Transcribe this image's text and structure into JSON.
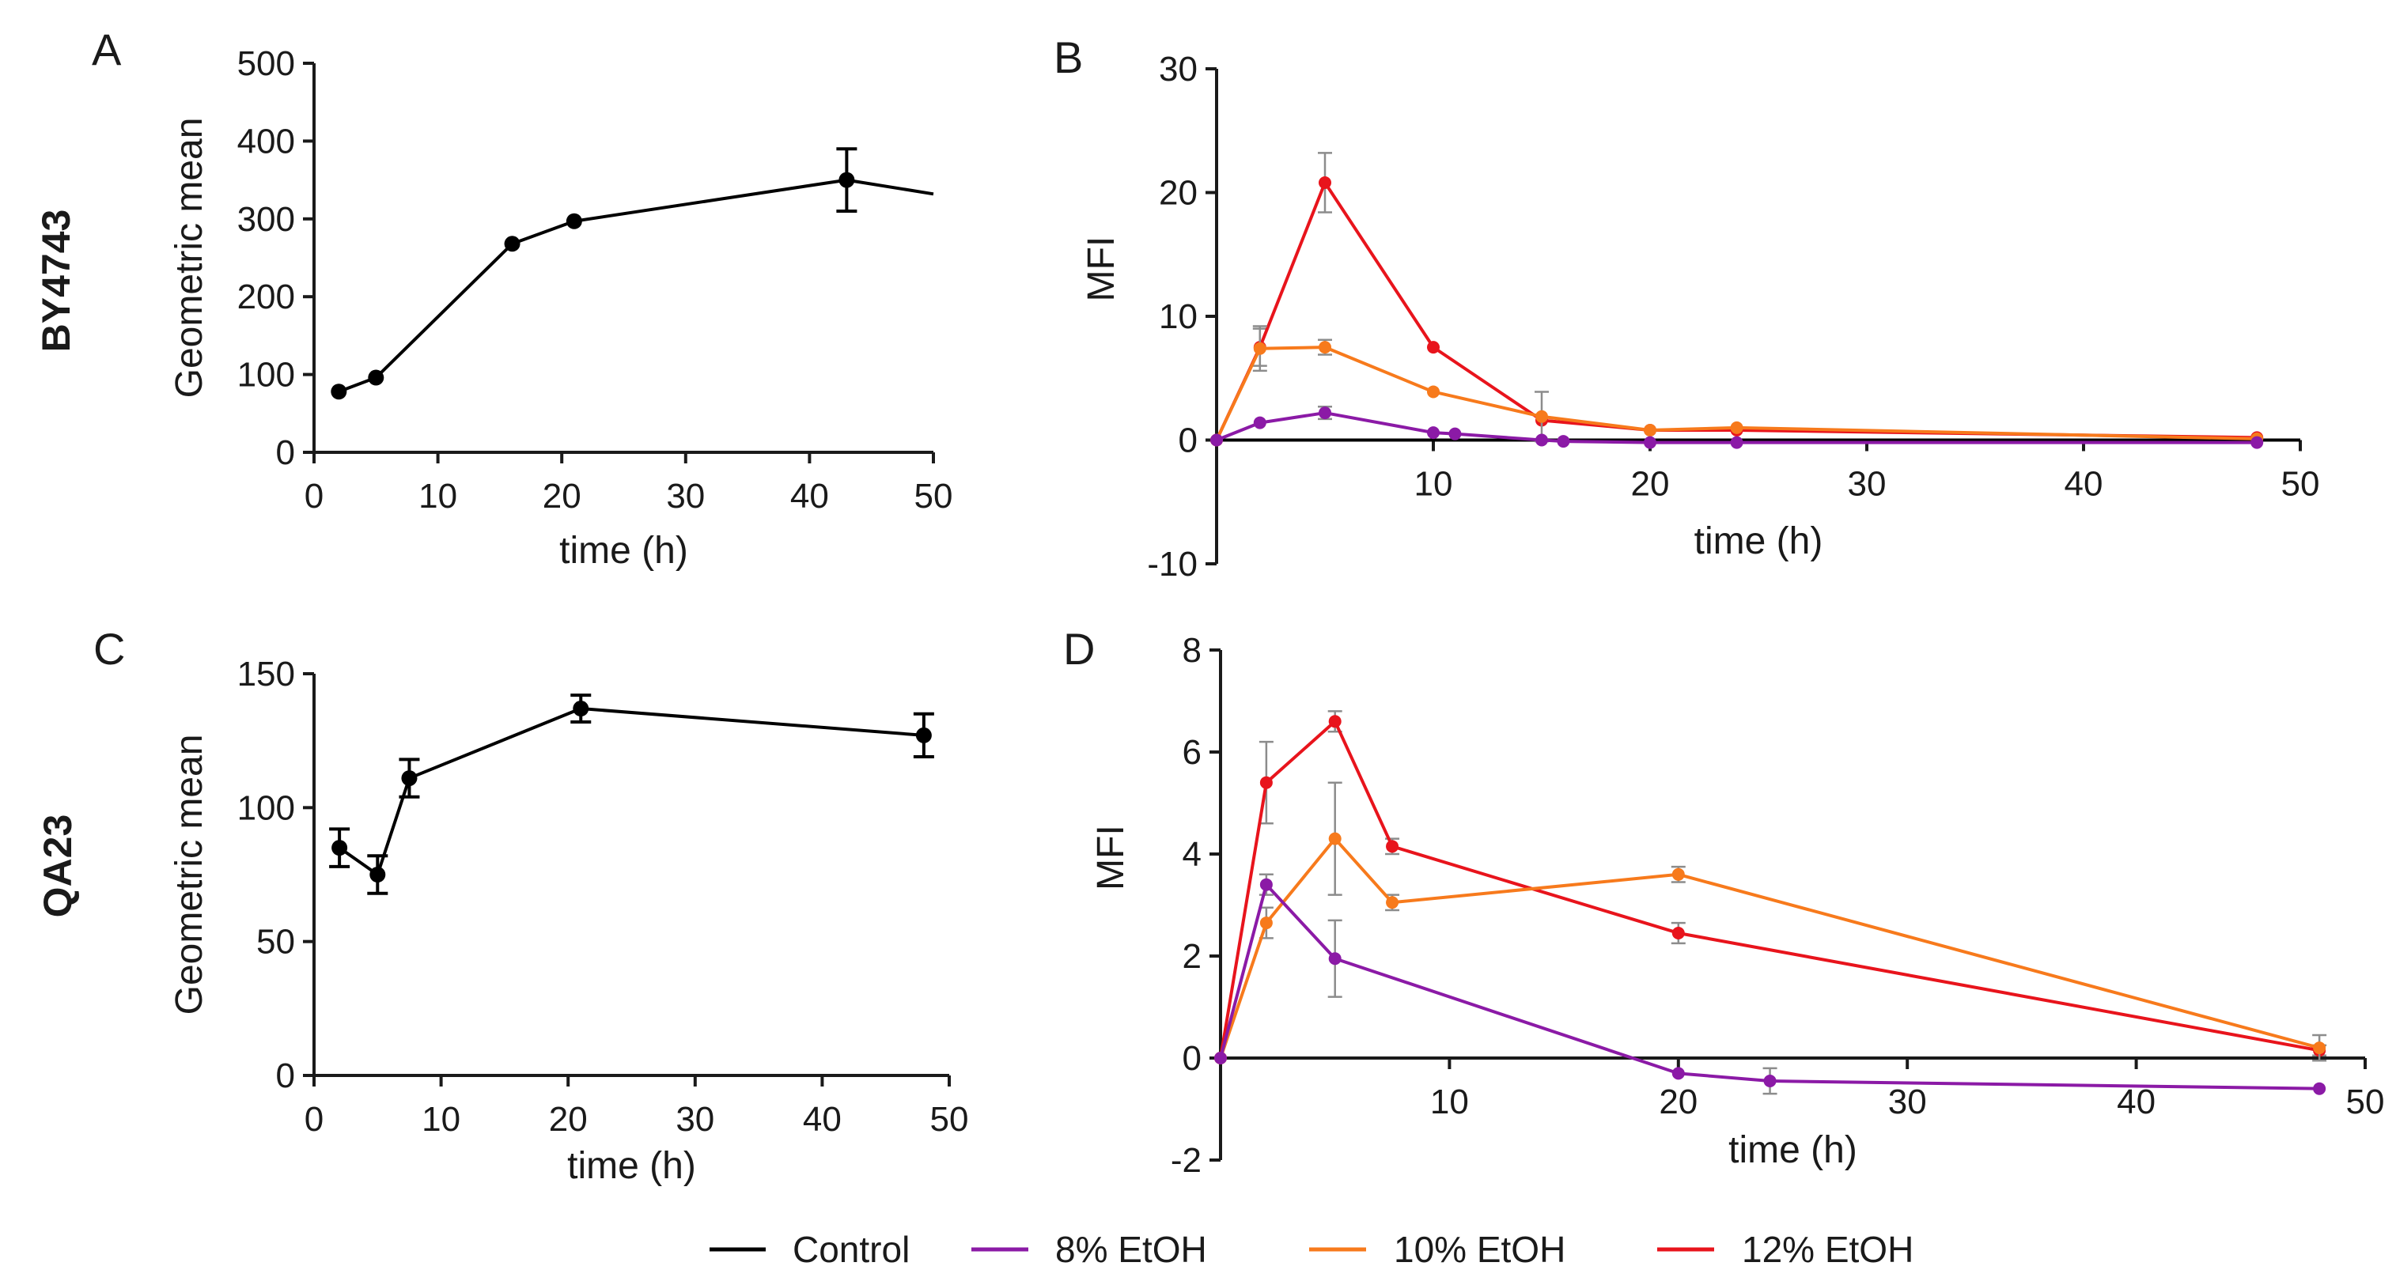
{
  "row_labels": {
    "top": "BY4743",
    "bottom": "QA23"
  },
  "colors": {
    "control": "#000000",
    "etoh8": "#8b1aa6",
    "etoh10": "#f77a1c",
    "etoh12": "#e8141c",
    "error_gray": "#8c8c8c"
  },
  "legend": [
    {
      "label": "Control",
      "key": "control"
    },
    {
      "label": "8% EtOH",
      "key": "etoh8"
    },
    {
      "label": "10% EtOH",
      "key": "etoh10"
    },
    {
      "label": "12% EtOH",
      "key": "etoh12"
    }
  ],
  "chart_data": [
    {
      "panel": "A",
      "type": "line",
      "xlabel": "time (h)",
      "ylabel": "Geometric mean",
      "xlim": [
        0,
        50
      ],
      "ylim": [
        0,
        500
      ],
      "xticks": [
        0,
        10,
        20,
        30,
        40,
        50
      ],
      "yticks": [
        0,
        100,
        200,
        300,
        400,
        500
      ],
      "series": [
        {
          "name": "Control",
          "color_key": "control",
          "markers": true,
          "x": [
            2,
            5,
            16,
            21,
            43,
            50
          ],
          "y": [
            78,
            96,
            268,
            297,
            350,
            332
          ],
          "err": [
            0,
            0,
            0,
            0,
            40,
            0
          ],
          "marker_mask": [
            1,
            1,
            1,
            1,
            1,
            0
          ]
        }
      ]
    },
    {
      "panel": "B",
      "type": "line",
      "xlabel": "time (h)",
      "ylabel": "MFI",
      "xlim": [
        0,
        50
      ],
      "ylim": [
        -10,
        30
      ],
      "xticks": [
        10,
        20,
        30,
        40,
        50
      ],
      "yticks": [
        -10,
        0,
        10,
        20,
        30
      ],
      "zero_axis": true,
      "series": [
        {
          "name": "Control",
          "color_key": "control",
          "markers": false,
          "x": [
            0,
            50
          ],
          "y": [
            0,
            0
          ],
          "err": [
            0,
            0
          ]
        },
        {
          "name": "12% EtOH",
          "color_key": "etoh12",
          "markers": true,
          "x": [
            0,
            2,
            5,
            10,
            15,
            20,
            24,
            48
          ],
          "y": [
            0,
            7.5,
            20.8,
            7.5,
            1.6,
            0.8,
            0.8,
            0.2
          ],
          "err": [
            0,
            1.5,
            2.4,
            0,
            0,
            0,
            0,
            0
          ]
        },
        {
          "name": "10% EtOH",
          "color_key": "etoh10",
          "markers": true,
          "x": [
            0,
            2,
            5,
            10,
            15,
            20,
            24,
            48
          ],
          "y": [
            0,
            7.4,
            7.5,
            3.9,
            1.9,
            0.8,
            1.0,
            0.1
          ],
          "err": [
            0,
            1.8,
            0.6,
            0,
            2.0,
            0,
            0,
            0
          ]
        },
        {
          "name": "8% EtOH",
          "color_key": "etoh8",
          "markers": true,
          "x": [
            0,
            2,
            5,
            10,
            11,
            15,
            16,
            20,
            24,
            48
          ],
          "y": [
            0,
            1.4,
            2.2,
            0.6,
            0.5,
            0.0,
            -0.1,
            -0.2,
            -0.2,
            -0.2
          ],
          "err": [
            0,
            0,
            0.5,
            0,
            0,
            0,
            0,
            0,
            0,
            0
          ]
        }
      ]
    },
    {
      "panel": "C",
      "type": "line",
      "xlabel": "time (h)",
      "ylabel": "Geometric mean",
      "xlim": [
        0,
        50
      ],
      "ylim": [
        0,
        150
      ],
      "xticks": [
        0,
        10,
        20,
        30,
        40,
        50
      ],
      "yticks": [
        0,
        50,
        100,
        150
      ],
      "series": [
        {
          "name": "Control",
          "color_key": "control",
          "markers": true,
          "x": [
            2,
            5,
            7.5,
            21,
            48
          ],
          "y": [
            85,
            75,
            111,
            137,
            127
          ],
          "err": [
            7,
            7,
            7,
            5,
            8
          ]
        }
      ]
    },
    {
      "panel": "D",
      "type": "line",
      "xlabel": "time (h)",
      "ylabel": "MFI",
      "xlim": [
        0,
        50
      ],
      "ylim": [
        -2,
        8
      ],
      "xticks": [
        10,
        20,
        30,
        40,
        50
      ],
      "yticks": [
        -2,
        0,
        2,
        4,
        6,
        8
      ],
      "zero_axis": true,
      "series": [
        {
          "name": "12% EtOH",
          "color_key": "etoh12",
          "markers": true,
          "x": [
            0,
            2,
            5,
            7.5,
            20,
            48
          ],
          "y": [
            0,
            5.4,
            6.6,
            4.15,
            2.45,
            0.15
          ],
          "err": [
            0,
            0.8,
            0.2,
            0.15,
            0.2,
            0.1
          ]
        },
        {
          "name": "10% EtOH",
          "color_key": "etoh10",
          "markers": true,
          "x": [
            0,
            2,
            5,
            7.5,
            20,
            48
          ],
          "y": [
            0,
            2.65,
            4.3,
            3.05,
            3.6,
            0.2
          ],
          "err": [
            0,
            0.3,
            1.1,
            0.15,
            0.15,
            0.25
          ]
        },
        {
          "name": "8% EtOH",
          "color_key": "etoh8",
          "markers": true,
          "x": [
            0,
            2,
            5,
            20,
            24,
            48
          ],
          "y": [
            0,
            3.4,
            1.95,
            -0.3,
            -0.45,
            -0.6
          ],
          "err": [
            0,
            0.2,
            0.75,
            0,
            0.25,
            0
          ]
        }
      ]
    }
  ]
}
